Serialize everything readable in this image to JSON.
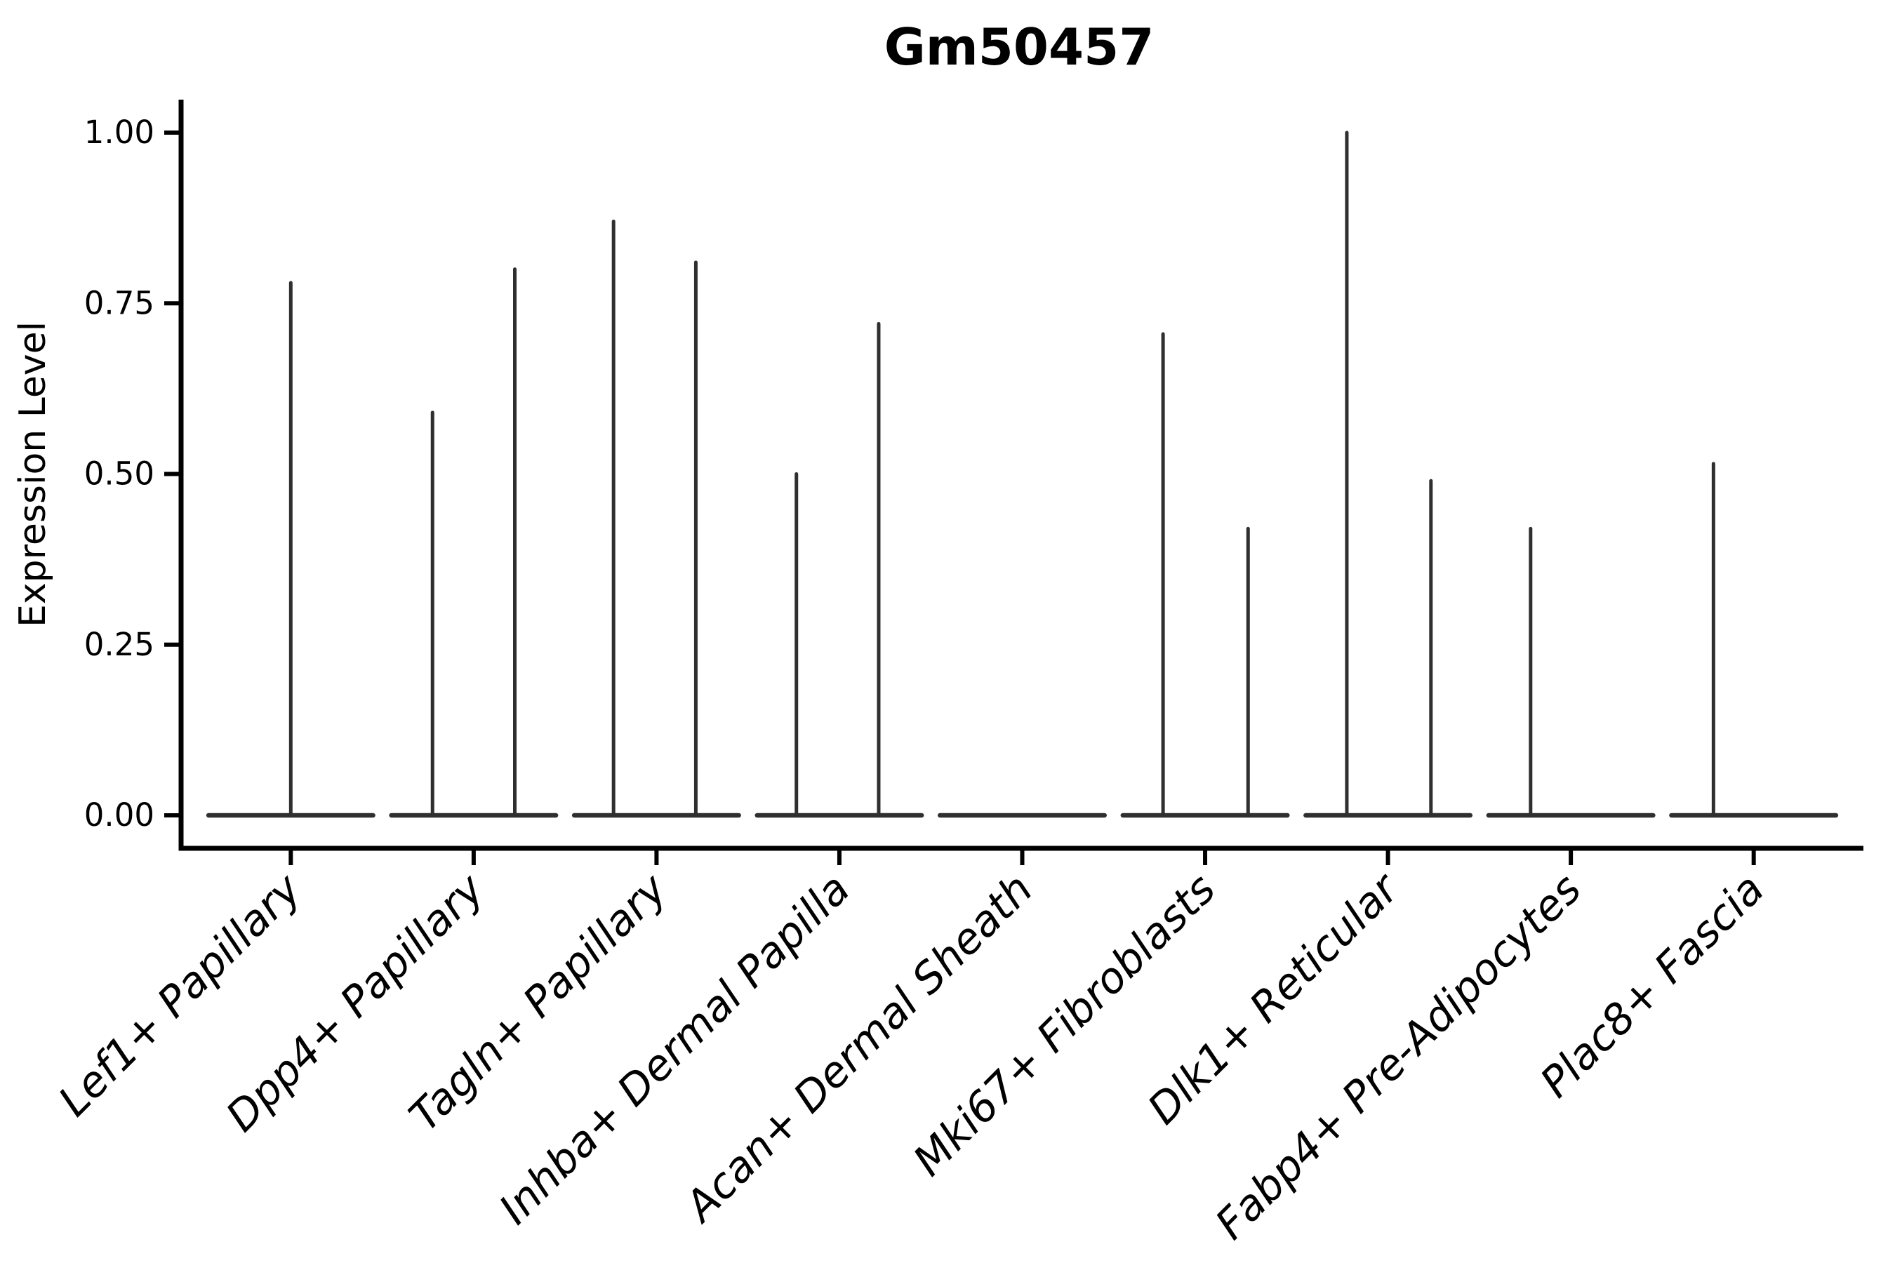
{
  "chart": {
    "title": "Gm50457",
    "ylabel": "Expression Level"
  },
  "chart_data": {
    "type": "violin",
    "title": "Gm50457",
    "xlabel": "",
    "ylabel": "Expression Level",
    "ylim": [
      0,
      1.0
    ],
    "ytick_values": [
      0,
      0.25,
      0.5,
      0.75,
      1.0
    ],
    "ytick_labels": [
      "0.00",
      "0.25",
      "0.50",
      "0.75",
      "1.00"
    ],
    "grid": false,
    "legend": "none",
    "categories": [
      "Lef1+ Papillary",
      "Dpp4+ Papillary",
      "Tagln+ Papillary",
      "Inhba+ Dermal Papilla",
      "Acan+ Dermal Sheath",
      "Mki67+ Fibroblasts",
      "Dlk1+ Reticular",
      "Fabp4+ Pre-Adipocytes",
      "Plac8+ Fascia"
    ],
    "violins": [
      {
        "category": "Lef1+ Papillary",
        "baseline_value": 0,
        "spikes": [
          {
            "offset": 0.0,
            "value": 0.78
          }
        ]
      },
      {
        "category": "Dpp4+ Papillary",
        "baseline_value": 0,
        "spikes": [
          {
            "offset": -0.225,
            "value": 0.59
          },
          {
            "offset": 0.225,
            "value": 0.8
          }
        ]
      },
      {
        "category": "Tagln+ Papillary",
        "baseline_value": 0,
        "spikes": [
          {
            "offset": -0.235,
            "value": 0.87
          },
          {
            "offset": 0.215,
            "value": 0.81
          }
        ]
      },
      {
        "category": "Inhba+ Dermal Papilla",
        "baseline_value": 0,
        "spikes": [
          {
            "offset": -0.235,
            "value": 0.5
          },
          {
            "offset": 0.215,
            "value": 0.72
          }
        ]
      },
      {
        "category": "Acan+ Dermal Sheath",
        "baseline_value": 0,
        "spikes": []
      },
      {
        "category": "Mki67+ Fibroblasts",
        "baseline_value": 0,
        "spikes": [
          {
            "offset": -0.23,
            "value": 0.705
          },
          {
            "offset": 0.235,
            "value": 0.42
          }
        ]
      },
      {
        "category": "Dlk1+ Reticular",
        "baseline_value": 0,
        "spikes": [
          {
            "offset": -0.225,
            "value": 1.0
          },
          {
            "offset": 0.235,
            "value": 0.49
          }
        ]
      },
      {
        "category": "Fabp4+ Pre-Adipocytes",
        "baseline_value": 0,
        "spikes": [
          {
            "offset": -0.22,
            "value": 0.42
          }
        ]
      },
      {
        "category": "Plac8+ Fascia",
        "baseline_value": 0,
        "spikes": [
          {
            "offset": -0.22,
            "value": 0.515
          }
        ]
      }
    ],
    "violin_rel_width": 0.9,
    "x_expand": 0.6,
    "colors": {
      "violin": "#2f2f2f",
      "axis": "#000000",
      "text": "#000000",
      "background": "#ffffff"
    }
  }
}
